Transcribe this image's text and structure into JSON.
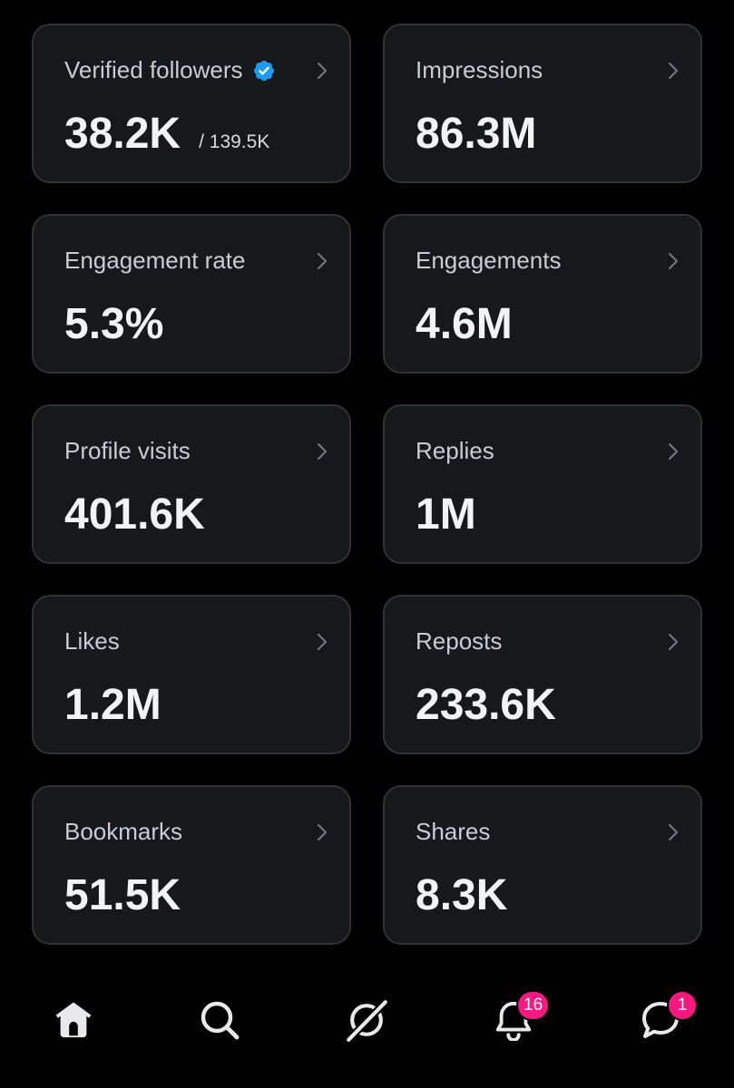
{
  "metrics": [
    {
      "label": "Verified followers",
      "value": "38.2K",
      "subvalue": "/ 139.5K",
      "verified_icon": "verified-badge-icon"
    },
    {
      "label": "Impressions",
      "value": "86.3M"
    },
    {
      "label": "Engagement rate",
      "value": "5.3%"
    },
    {
      "label": "Engagements",
      "value": "4.6M"
    },
    {
      "label": "Profile visits",
      "value": "401.6K"
    },
    {
      "label": "Replies",
      "value": "1M"
    },
    {
      "label": "Likes",
      "value": "1.2M"
    },
    {
      "label": "Reposts",
      "value": "233.6K"
    },
    {
      "label": "Bookmarks",
      "value": "51.5K"
    },
    {
      "label": "Shares",
      "value": "8.3K"
    }
  ],
  "nav": {
    "items": [
      {
        "icon": "home-icon"
      },
      {
        "icon": "search-icon"
      },
      {
        "icon": "grok-icon"
      },
      {
        "icon": "bell-icon",
        "badge": "16"
      },
      {
        "icon": "messages-icon",
        "badge": "1"
      }
    ]
  },
  "colors": {
    "background": "#000000",
    "card": "#16181c",
    "card_border": "#2f3336",
    "verified_blue": "#1d9bf0",
    "badge_pink": "#f91880"
  }
}
